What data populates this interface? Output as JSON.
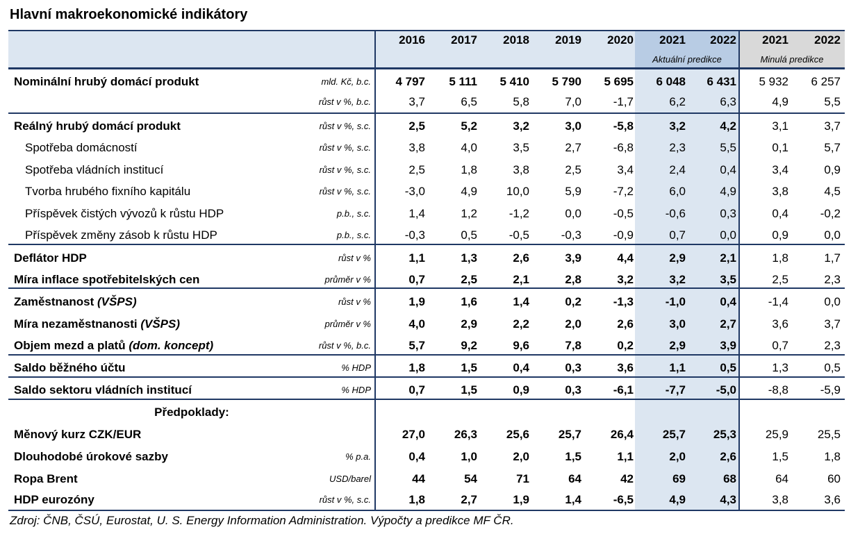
{
  "title": "Hlavní makroekonomické indikátory",
  "header": {
    "years_hist": [
      "2016",
      "2017",
      "2018",
      "2019",
      "2020"
    ],
    "years_current": [
      "2021",
      "2022"
    ],
    "years_previous": [
      "2021",
      "2022"
    ],
    "current_label": "Aktuální predikce",
    "previous_label": "Minulá predikce"
  },
  "rows": [
    {
      "label": "Nominální hrubý domácí produkt",
      "unit": "mld. Kč, b.c.",
      "values": [
        "4 797",
        "5 111",
        "5 410",
        "5 790",
        "5 695",
        "6 048",
        "6 431",
        "5 932",
        "6 257"
      ]
    },
    {
      "label": "",
      "unit": "růst v %, b.c.",
      "values": [
        "3,7",
        "6,5",
        "5,8",
        "7,0",
        "-1,7",
        "6,2",
        "6,3",
        "4,9",
        "5,5"
      ]
    },
    {
      "label": "Reálný hrubý domácí produkt",
      "unit": "růst v %, s.c.",
      "values": [
        "2,5",
        "5,2",
        "3,2",
        "3,0",
        "-5,8",
        "3,2",
        "4,2",
        "3,1",
        "3,7"
      ]
    },
    {
      "label": "Spotřeba domácností",
      "unit": "růst v %, s.c.",
      "values": [
        "3,8",
        "4,0",
        "3,5",
        "2,7",
        "-6,8",
        "2,3",
        "5,5",
        "0,1",
        "5,7"
      ]
    },
    {
      "label": "Spotřeba vládních institucí",
      "unit": "růst v %, s.c.",
      "values": [
        "2,5",
        "1,8",
        "3,8",
        "2,5",
        "3,4",
        "2,4",
        "0,4",
        "3,4",
        "0,9"
      ]
    },
    {
      "label": "Tvorba hrubého fixního kapitálu",
      "unit": "růst v %, s.c.",
      "values": [
        "-3,0",
        "4,9",
        "10,0",
        "5,9",
        "-7,2",
        "6,0",
        "4,9",
        "3,8",
        "4,5"
      ]
    },
    {
      "label": "Příspěvek čistých vývozů k růstu HDP",
      "unit": "p.b., s.c.",
      "values": [
        "1,4",
        "1,2",
        "-1,2",
        "0,0",
        "-0,5",
        "-0,6",
        "0,3",
        "0,4",
        "-0,2"
      ]
    },
    {
      "label": "Příspěvek změny zásob k růstu HDP",
      "unit": "p.b., s.c.",
      "values": [
        "-0,3",
        "0,5",
        "-0,5",
        "-0,3",
        "-0,9",
        "0,7",
        "0,0",
        "0,9",
        "0,0"
      ]
    },
    {
      "label": "Deflátor HDP",
      "unit": "růst v %",
      "values": [
        "1,1",
        "1,3",
        "2,6",
        "3,9",
        "4,4",
        "2,9",
        "2,1",
        "1,8",
        "1,7"
      ]
    },
    {
      "label": "Míra inflace spotřebitelských cen",
      "unit": "průměr v %",
      "values": [
        "0,7",
        "2,5",
        "2,1",
        "2,8",
        "3,2",
        "3,2",
        "3,5",
        "2,5",
        "2,3"
      ]
    },
    {
      "label": "Zaměstnanost",
      "label_paren": "(VŠPS)",
      "unit": "růst v %",
      "values": [
        "1,9",
        "1,6",
        "1,4",
        "0,2",
        "-1,3",
        "-1,0",
        "0,4",
        "-1,4",
        "0,0"
      ]
    },
    {
      "label": "Míra nezaměstnanosti",
      "label_paren": "(VŠPS)",
      "unit": "průměr v %",
      "values": [
        "4,0",
        "2,9",
        "2,2",
        "2,0",
        "2,6",
        "3,0",
        "2,7",
        "3,6",
        "3,7"
      ]
    },
    {
      "label": "Objem mezd a platů",
      "label_paren": "(dom. koncept)",
      "unit": "růst v %, b.c.",
      "values": [
        "5,7",
        "9,2",
        "9,6",
        "7,8",
        "0,2",
        "2,9",
        "3,9",
        "0,7",
        "2,3"
      ]
    },
    {
      "label": "Saldo běžného účtu",
      "unit": "% HDP",
      "values": [
        "1,8",
        "1,5",
        "0,4",
        "0,3",
        "3,6",
        "1,1",
        "0,5",
        "1,3",
        "0,5"
      ]
    },
    {
      "label": "Saldo sektoru vládních institucí",
      "unit": "% HDP",
      "values": [
        "0,7",
        "1,5",
        "0,9",
        "0,3",
        "-6,1",
        "-7,7",
        "-5,0",
        "-8,8",
        "-5,9"
      ]
    },
    {
      "label": "Předpoklady:",
      "unit": "",
      "values": [
        "",
        "",
        "",
        "",
        "",
        "",
        "",
        "",
        ""
      ]
    },
    {
      "label": "Měnový kurz CZK/EUR",
      "unit": "",
      "values": [
        "27,0",
        "26,3",
        "25,6",
        "25,7",
        "26,4",
        "25,7",
        "25,3",
        "25,9",
        "25,5"
      ]
    },
    {
      "label": "Dlouhodobé úrokové sazby",
      "unit": "% p.a.",
      "values": [
        "0,4",
        "1,0",
        "2,0",
        "1,5",
        "1,1",
        "2,0",
        "2,6",
        "1,5",
        "1,8"
      ]
    },
    {
      "label": "Ropa Brent",
      "unit": "USD/barel",
      "values": [
        "44",
        "54",
        "71",
        "64",
        "42",
        "69",
        "68",
        "64",
        "60"
      ]
    },
    {
      "label": "HDP eurozóny",
      "unit": "růst v %, s.c.",
      "values": [
        "1,8",
        "2,7",
        "1,9",
        "1,4",
        "-6,5",
        "4,9",
        "4,3",
        "3,8",
        "3,6"
      ]
    }
  ],
  "source": "Zdroj: ČNB, ČSÚ, Eurostat, U. S. Energy Information Administration. Výpočty a predikce MF ČR.",
  "colors": {
    "header_bg": "#dce6f1",
    "current_bg": "#dce6f1",
    "current_header_bg": "#b8cce4",
    "previous_header_bg": "#d9d9d9",
    "line": "#1f3864"
  }
}
